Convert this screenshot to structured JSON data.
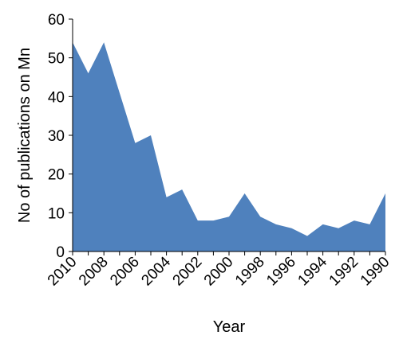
{
  "chart_data": {
    "type": "area",
    "title": "",
    "xlabel": "Year",
    "ylabel": "No of publications on Mn",
    "x": [
      "2010",
      "2009",
      "2008",
      "2007",
      "2006",
      "2005",
      "2004",
      "2003",
      "2002",
      "2001",
      "2000",
      "1999",
      "1998",
      "1997",
      "1996",
      "1995",
      "1994",
      "1993",
      "1992",
      "1991",
      "1990"
    ],
    "x_tick_labels": [
      "2010",
      "2008",
      "2006",
      "2004",
      "2002",
      "2000",
      "1998",
      "1996",
      "1994",
      "1992",
      "1990"
    ],
    "values": [
      54,
      46,
      54,
      41,
      28,
      30,
      14,
      16,
      8,
      8,
      9,
      15,
      9,
      7,
      6,
      4,
      7,
      6,
      8,
      7,
      15
    ],
    "ylim": [
      0,
      60
    ],
    "yticks": [
      0,
      10,
      20,
      30,
      40,
      50,
      60
    ],
    "grid": false,
    "legend": "none",
    "fill_color": "#4f81bd"
  }
}
